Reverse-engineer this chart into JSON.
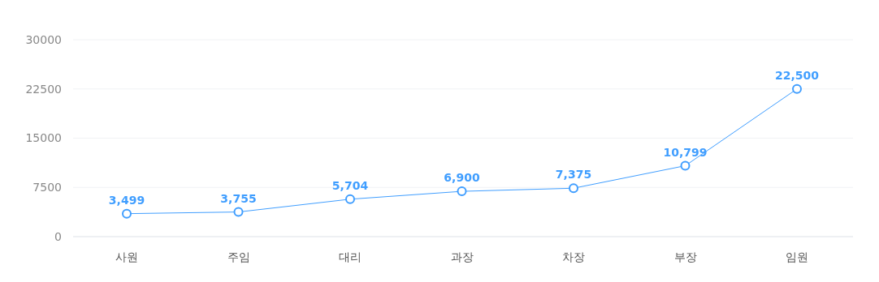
{
  "chart_data": {
    "type": "line",
    "categories": [
      "사원",
      "주임",
      "대리",
      "과장",
      "차장",
      "부장",
      "임원"
    ],
    "series": [
      {
        "color": "#409eff",
        "values": [
          3499,
          3755,
          5704,
          6900,
          7375,
          10799,
          22500
        ],
        "value_labels": [
          "3,499",
          "3,755",
          "5,704",
          "6,900",
          "7,375",
          "10,799",
          "22,500"
        ]
      }
    ],
    "ylim": [
      0,
      30000
    ],
    "yticks": [
      0,
      7500,
      15000,
      22500,
      30000
    ],
    "grid": "y",
    "marker": "circle",
    "line_style": "solid"
  }
}
